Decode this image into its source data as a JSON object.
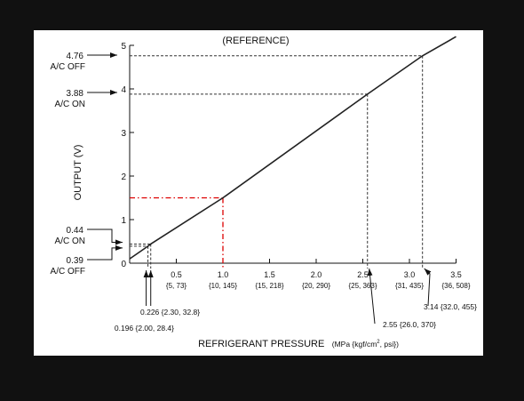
{
  "chart_data": {
    "type": "line",
    "title": "(REFERENCE)",
    "ylabel": "OUTPUT (V)",
    "xlabel": "REFRIGERANT PRESSURE",
    "xlabel_units_prefix": "(MPa {kgf/cm",
    "xlabel_units_sup": "2",
    "xlabel_units_suffix": ", psi})",
    "xlim": [
      0,
      3.5
    ],
    "ylim": [
      0,
      5
    ],
    "grid": false,
    "colors": {
      "line": "#222222",
      "guide": "#333333",
      "highlight": "#dd0000",
      "background": "#ffffff"
    },
    "y_ticks": [
      {
        "value": 0,
        "label": "0"
      },
      {
        "value": 1,
        "label": "1"
      },
      {
        "value": 2,
        "label": "2"
      },
      {
        "value": 3,
        "label": "3"
      },
      {
        "value": 4,
        "label": "4"
      },
      {
        "value": 5,
        "label": "5"
      }
    ],
    "x_ticks": [
      {
        "value": 0.5,
        "label": "0.5",
        "sub": "{5, 73}"
      },
      {
        "value": 1.0,
        "label": "1.0",
        "sub": "{10, 145}"
      },
      {
        "value": 1.5,
        "label": "1.5",
        "sub": "{15, 218}"
      },
      {
        "value": 2.0,
        "label": "2.0",
        "sub": "{20, 290}"
      },
      {
        "value": 2.5,
        "label": "2.5",
        "sub": "{25, 363}"
      },
      {
        "value": 3.0,
        "label": "3.0",
        "sub": "{31, 435}"
      },
      {
        "value": 3.5,
        "label": "3.5",
        "sub": "{36, 508}"
      }
    ],
    "series": [
      {
        "x": [
          0.0,
          0.196,
          0.226,
          1.0,
          2.55,
          3.14,
          3.5
        ],
        "y": [
          0.1,
          0.39,
          0.44,
          1.5,
          3.88,
          4.76,
          5.2
        ]
      }
    ],
    "y_callouts": [
      {
        "value": 4.76,
        "label": "4.76",
        "state": "A/C OFF"
      },
      {
        "value": 3.88,
        "label": "3.88",
        "state": "A/C ON"
      },
      {
        "value": 0.44,
        "label": "0.44",
        "state": "A/C ON"
      },
      {
        "value": 0.39,
        "label": "0.39",
        "state": "A/C OFF"
      }
    ],
    "x_callouts": [
      {
        "value": 0.196,
        "text": "0.196 {2.00, 28.4}"
      },
      {
        "value": 0.226,
        "text": "0.226 {2.30, 32.8}"
      },
      {
        "value": 2.55,
        "text": "2.55 {26.0, 370}"
      },
      {
        "value": 3.14,
        "text": "3.14 {32.0, 455}"
      }
    ],
    "reference_points": [
      {
        "x": 0.196,
        "y": 0.39
      },
      {
        "x": 0.226,
        "y": 0.44
      },
      {
        "x": 2.55,
        "y": 3.88
      },
      {
        "x": 3.14,
        "y": 4.76
      }
    ],
    "highlight_point": {
      "x": 1.0,
      "y": 1.5
    }
  }
}
